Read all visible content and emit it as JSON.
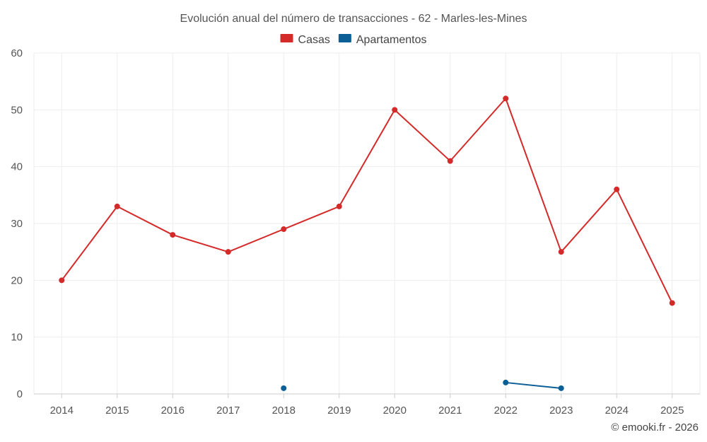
{
  "chart_data": {
    "type": "line",
    "title": "Evolución anual del número de transacciones - 62 - Marles-les-Mines",
    "xlabel": "",
    "ylabel": "",
    "categories": [
      "2014",
      "2015",
      "2016",
      "2017",
      "2018",
      "2019",
      "2020",
      "2021",
      "2022",
      "2023",
      "2024",
      "2025"
    ],
    "ylim": [
      0,
      60
    ],
    "yticks": [
      0,
      10,
      20,
      30,
      40,
      50,
      60
    ],
    "grid": true,
    "legend_position": "top-center",
    "series": [
      {
        "name": "Casas",
        "color": "#d42a2a",
        "values": [
          20,
          33,
          28,
          25,
          29,
          33,
          50,
          41,
          52,
          25,
          36,
          16
        ]
      },
      {
        "name": "Apartamentos",
        "color": "#0b5f96",
        "values": [
          null,
          null,
          null,
          null,
          1,
          null,
          null,
          null,
          2,
          1,
          null,
          null
        ]
      }
    ]
  },
  "credit": "© emooki.fr - 2026"
}
